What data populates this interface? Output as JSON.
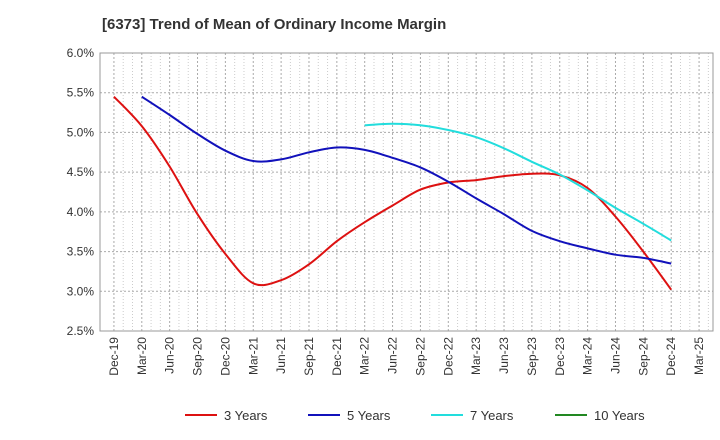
{
  "chart_data": {
    "type": "line",
    "title": "[6373]  Trend of Mean of Ordinary Income Margin",
    "xlabel": "",
    "ylabel": "",
    "x_ticks": [
      "Dec-19",
      "Mar-20",
      "Jun-20",
      "Sep-20",
      "Dec-20",
      "Mar-21",
      "Jun-21",
      "Sep-21",
      "Dec-21",
      "Mar-22",
      "Jun-22",
      "Sep-22",
      "Dec-22",
      "Mar-23",
      "Jun-23",
      "Sep-23",
      "Dec-23",
      "Mar-24",
      "Jun-24",
      "Sep-24",
      "Dec-24",
      "Mar-25"
    ],
    "y_ticks": [
      "2.5%",
      "3.0%",
      "3.5%",
      "4.0%",
      "4.5%",
      "5.0%",
      "5.5%",
      "6.0%"
    ],
    "ylim": [
      2.5,
      6.0
    ],
    "grid": true,
    "legend_position": "bottom",
    "series": [
      {
        "name": "3 Years",
        "color": "#dd1111",
        "x": [
          "Dec-19",
          "Mar-20",
          "Jun-20",
          "Sep-20",
          "Dec-20",
          "Mar-21",
          "Jun-21",
          "Sep-21",
          "Dec-21",
          "Mar-22",
          "Jun-22",
          "Sep-22",
          "Dec-22",
          "Mar-23",
          "Jun-23",
          "Sep-23",
          "Dec-23",
          "Mar-24",
          "Jun-24",
          "Sep-24",
          "Dec-24"
        ],
        "values": [
          5.45,
          5.08,
          4.57,
          3.97,
          3.47,
          3.1,
          3.14,
          3.34,
          3.63,
          3.87,
          4.08,
          4.28,
          4.37,
          4.4,
          4.45,
          4.48,
          4.46,
          4.3,
          3.94,
          3.5,
          3.02
        ]
      },
      {
        "name": "5 Years",
        "color": "#1111bb",
        "x": [
          "Mar-20",
          "Jun-20",
          "Sep-20",
          "Dec-20",
          "Mar-21",
          "Jun-21",
          "Sep-21",
          "Dec-21",
          "Mar-22",
          "Jun-22",
          "Sep-22",
          "Dec-22",
          "Mar-23",
          "Jun-23",
          "Sep-23",
          "Dec-23",
          "Mar-24",
          "Jun-24",
          "Sep-24",
          "Dec-24"
        ],
        "values": [
          5.45,
          5.22,
          4.98,
          4.77,
          4.64,
          4.66,
          4.75,
          4.81,
          4.78,
          4.68,
          4.56,
          4.38,
          4.17,
          3.97,
          3.76,
          3.63,
          3.54,
          3.46,
          3.42,
          3.35
        ]
      },
      {
        "name": "7 Years",
        "color": "#22dddd",
        "x": [
          "Mar-22",
          "Jun-22",
          "Sep-22",
          "Dec-22",
          "Mar-23",
          "Jun-23",
          "Sep-23",
          "Dec-23",
          "Mar-24",
          "Jun-24",
          "Sep-24",
          "Dec-24"
        ],
        "values": [
          5.09,
          5.11,
          5.09,
          5.03,
          4.94,
          4.8,
          4.63,
          4.47,
          4.27,
          4.05,
          3.85,
          3.64
        ]
      },
      {
        "name": "10 Years",
        "color": "#228822",
        "x": [],
        "values": []
      }
    ]
  }
}
